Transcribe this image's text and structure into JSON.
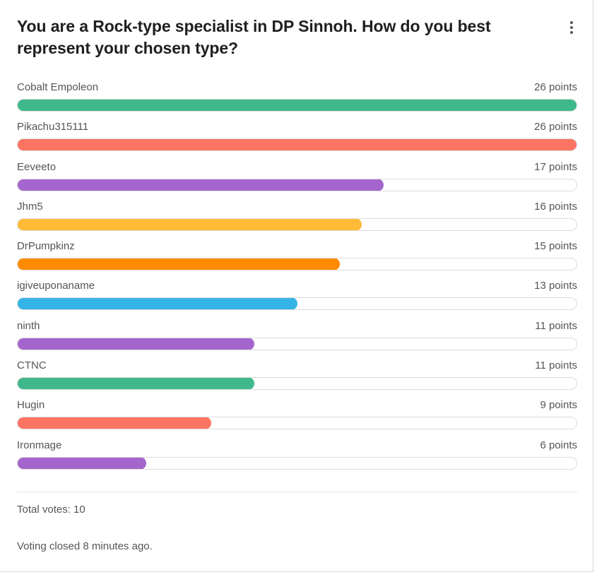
{
  "poll": {
    "title": "You are a Rock-type specialist in DP Sinnoh. How do you best represent your chosen type?",
    "menu_icon": "kebab-menu-icon",
    "options": [
      {
        "label": "Cobalt Empoleon",
        "points_text": "26 points",
        "points": 26,
        "color": "#3fb88c"
      },
      {
        "label": "Pikachu315111",
        "points_text": "26 points",
        "points": 26,
        "color": "#fd7463"
      },
      {
        "label": "Eeveeto",
        "points_text": "17 points",
        "points": 17,
        "color": "#a466cc"
      },
      {
        "label": "Jhm5",
        "points_text": "16 points",
        "points": 16,
        "color": "#ffbb37"
      },
      {
        "label": "DrPumpkinz",
        "points_text": "15 points",
        "points": 15,
        "color": "#ff8a00"
      },
      {
        "label": "igiveuponaname",
        "points_text": "13 points",
        "points": 13,
        "color": "#35b3e6"
      },
      {
        "label": "ninth",
        "points_text": "11 points",
        "points": 11,
        "color": "#a466cc"
      },
      {
        "label": "CTNC",
        "points_text": "11 points",
        "points": 11,
        "color": "#3fb88c"
      },
      {
        "label": "Hugin",
        "points_text": "9 points",
        "points": 9,
        "color": "#fd7463"
      },
      {
        "label": "Ironmage",
        "points_text": "6 points",
        "points": 6,
        "color": "#a466cc"
      }
    ],
    "max_points": 26,
    "total_votes": "Total votes: 10",
    "status": "Voting closed 8 minutes ago."
  }
}
